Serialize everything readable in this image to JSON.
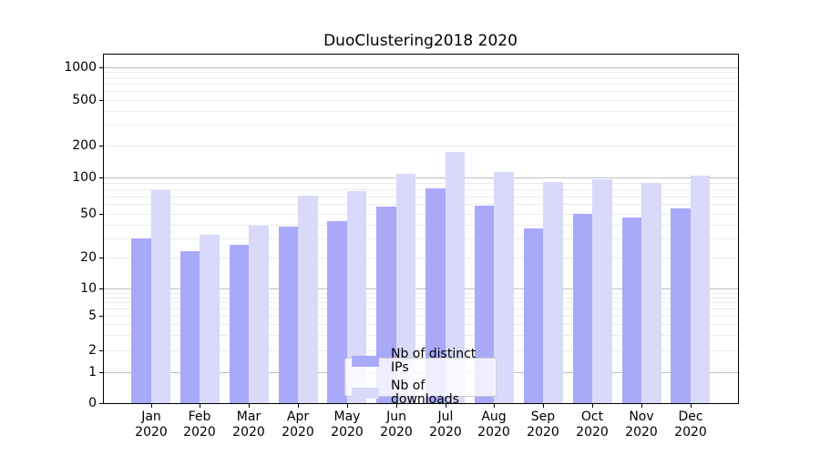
{
  "title": "DuoClustering2018 2020",
  "legend": {
    "items": [
      {
        "label": "Nb of distinct IPs",
        "color": "#a9a9fa"
      },
      {
        "label": "Nb of downloads",
        "color": "#d9d9fa"
      }
    ]
  },
  "chart_data": {
    "type": "bar",
    "title": "DuoClustering2018 2020",
    "categories": [
      "Jan",
      "Feb",
      "Mar",
      "Apr",
      "May",
      "Jun",
      "Jul",
      "Aug",
      "Sep",
      "Oct",
      "Nov",
      "Dec"
    ],
    "category_year": "2020",
    "series": [
      {
        "name": "Nb of distinct IPs",
        "color": "#a9a9fa",
        "values": [
          30,
          23,
          26,
          38,
          43,
          57,
          81,
          58,
          37,
          50,
          46,
          55
        ]
      },
      {
        "name": "Nb of downloads",
        "color": "#d9d9fa",
        "values": [
          78,
          32,
          39,
          71,
          77,
          108,
          172,
          113,
          92,
          96,
          90,
          104
        ]
      }
    ],
    "xlabel": "",
    "ylabel": "",
    "yscale": "symlog",
    "yticks": [
      0,
      1,
      2,
      5,
      10,
      20,
      50,
      100,
      200,
      500,
      1000
    ],
    "ytick_labels": [
      "0",
      "1",
      "2",
      "5",
      "10",
      "20",
      "50",
      "100",
      "200",
      "500",
      "1000"
    ],
    "ylim": [
      0,
      1300
    ],
    "grid": true,
    "legend_position": "lower center"
  }
}
